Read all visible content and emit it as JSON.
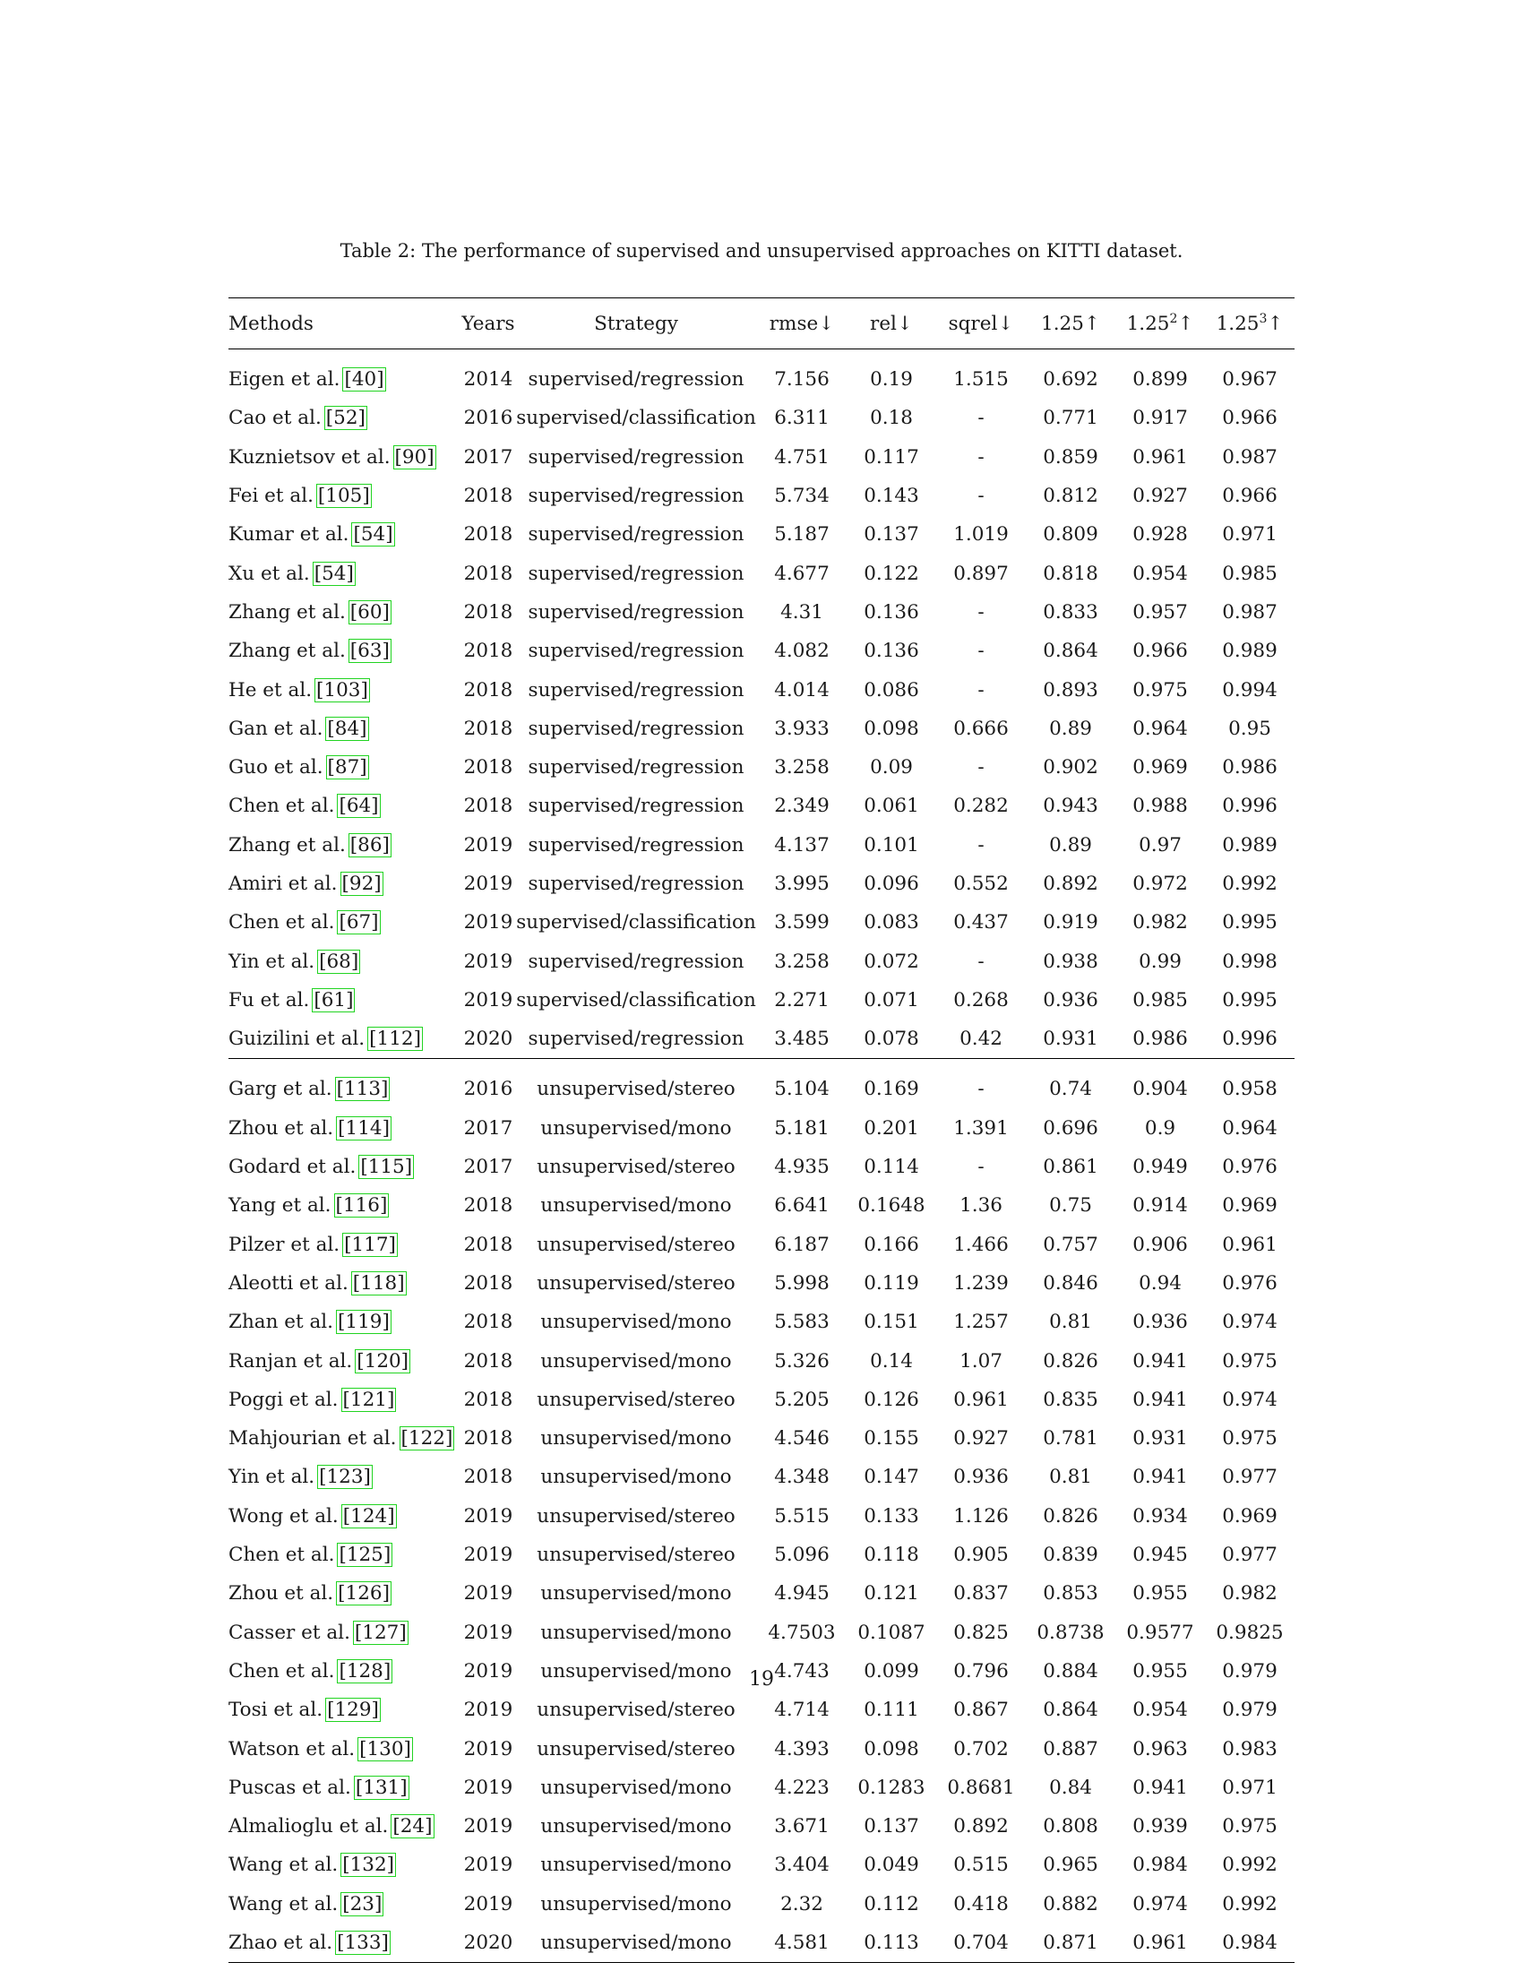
{
  "caption": "Table 2: The performance of supervised and unsupervised approaches on KITTI dataset.",
  "page_number": "19",
  "headers": {
    "methods": "Methods",
    "years": "Years",
    "strategy": "Strategy",
    "rmse": "rmse↓",
    "rel": "rel↓",
    "sqrel": "sqrel↓",
    "d1": "1.25↑",
    "d2_base": "1.25",
    "d2_exp": "2",
    "d2_arrow": "↑",
    "d3_base": "1.25",
    "d3_exp": "3",
    "d3_arrow": "↑"
  },
  "supervised": [
    {
      "name": "Eigen et al.",
      "cite": "[40]",
      "year": "2014",
      "strategy": "supervised/regression",
      "rmse": "7.156",
      "rel": "0.19",
      "sqrel": "1.515",
      "d1": "0.692",
      "d2": "0.899",
      "d3": "0.967"
    },
    {
      "name": "Cao et al.",
      "cite": "[52]",
      "year": "2016",
      "strategy": "supervised/classification",
      "rmse": "6.311",
      "rel": "0.18",
      "sqrel": "-",
      "d1": "0.771",
      "d2": "0.917",
      "d3": "0.966"
    },
    {
      "name": "Kuznietsov et al.",
      "cite": "[90]",
      "year": "2017",
      "strategy": "supervised/regression",
      "rmse": "4.751",
      "rel": "0.117",
      "sqrel": "-",
      "d1": "0.859",
      "d2": "0.961",
      "d3": "0.987"
    },
    {
      "name": "Fei et al.",
      "cite": "[105]",
      "year": "2018",
      "strategy": "supervised/regression",
      "rmse": "5.734",
      "rel": "0.143",
      "sqrel": "-",
      "d1": "0.812",
      "d2": "0.927",
      "d3": "0.966"
    },
    {
      "name": "Kumar et al.",
      "cite": "[54]",
      "year": "2018",
      "strategy": "supervised/regression",
      "rmse": "5.187",
      "rel": "0.137",
      "sqrel": "1.019",
      "d1": "0.809",
      "d2": "0.928",
      "d3": "0.971"
    },
    {
      "name": "Xu et al.",
      "cite": "[54]",
      "year": "2018",
      "strategy": "supervised/regression",
      "rmse": "4.677",
      "rel": "0.122",
      "sqrel": "0.897",
      "d1": "0.818",
      "d2": "0.954",
      "d3": "0.985"
    },
    {
      "name": "Zhang et al.",
      "cite": "[60]",
      "year": "2018",
      "strategy": "supervised/regression",
      "rmse": "4.31",
      "rel": "0.136",
      "sqrel": "-",
      "d1": "0.833",
      "d2": "0.957",
      "d3": "0.987"
    },
    {
      "name": "Zhang et al.",
      "cite": "[63]",
      "year": "2018",
      "strategy": "supervised/regression",
      "rmse": "4.082",
      "rel": "0.136",
      "sqrel": "-",
      "d1": "0.864",
      "d2": "0.966",
      "d3": "0.989"
    },
    {
      "name": "He et al.",
      "cite": "[103]",
      "year": "2018",
      "strategy": "supervised/regression",
      "rmse": "4.014",
      "rel": "0.086",
      "sqrel": "-",
      "d1": "0.893",
      "d2": "0.975",
      "d3": "0.994"
    },
    {
      "name": "Gan et al.",
      "cite": "[84]",
      "year": "2018",
      "strategy": "supervised/regression",
      "rmse": "3.933",
      "rel": "0.098",
      "sqrel": "0.666",
      "d1": "0.89",
      "d2": "0.964",
      "d3": "0.95"
    },
    {
      "name": "Guo et al.",
      "cite": "[87]",
      "year": "2018",
      "strategy": "supervised/regression",
      "rmse": "3.258",
      "rel": "0.09",
      "sqrel": "-",
      "d1": "0.902",
      "d2": "0.969",
      "d3": "0.986"
    },
    {
      "name": "Chen et al.",
      "cite": "[64]",
      "year": "2018",
      "strategy": "supervised/regression",
      "rmse": "2.349",
      "rel": "0.061",
      "sqrel": "0.282",
      "d1": "0.943",
      "d2": "0.988",
      "d3": "0.996"
    },
    {
      "name": "Zhang et al.",
      "cite": "[86]",
      "year": "2019",
      "strategy": "supervised/regression",
      "rmse": "4.137",
      "rel": "0.101",
      "sqrel": "-",
      "d1": "0.89",
      "d2": "0.97",
      "d3": "0.989"
    },
    {
      "name": "Amiri et al.",
      "cite": "[92]",
      "year": "2019",
      "strategy": "supervised/regression",
      "rmse": "3.995",
      "rel": "0.096",
      "sqrel": "0.552",
      "d1": "0.892",
      "d2": "0.972",
      "d3": "0.992"
    },
    {
      "name": "Chen et al.",
      "cite": "[67]",
      "year": "2019",
      "strategy": "supervised/classification",
      "rmse": "3.599",
      "rel": "0.083",
      "sqrel": "0.437",
      "d1": "0.919",
      "d2": "0.982",
      "d3": "0.995"
    },
    {
      "name": "Yin et al.",
      "cite": "[68]",
      "year": "2019",
      "strategy": "supervised/regression",
      "rmse": "3.258",
      "rel": "0.072",
      "sqrel": "-",
      "d1": "0.938",
      "d2": "0.99",
      "d3": "0.998"
    },
    {
      "name": "Fu et al.",
      "cite": "[61]",
      "year": "2019",
      "strategy": "supervised/classification",
      "rmse": "2.271",
      "rel": "0.071",
      "sqrel": "0.268",
      "d1": "0.936",
      "d2": "0.985",
      "d3": "0.995"
    },
    {
      "name": "Guizilini et al.",
      "cite": "[112]",
      "year": "2020",
      "strategy": "supervised/regression",
      "rmse": "3.485",
      "rel": "0.078",
      "sqrel": "0.42",
      "d1": "0.931",
      "d2": "0.986",
      "d3": "0.996"
    }
  ],
  "unsupervised": [
    {
      "name": "Garg et al.",
      "cite": "[113]",
      "year": "2016",
      "strategy": "unsupervised/stereo",
      "rmse": "5.104",
      "rel": "0.169",
      "sqrel": "-",
      "d1": "0.74",
      "d2": "0.904",
      "d3": "0.958"
    },
    {
      "name": "Zhou et al.",
      "cite": "[114]",
      "year": "2017",
      "strategy": "unsupervised/mono",
      "rmse": "5.181",
      "rel": "0.201",
      "sqrel": "1.391",
      "d1": "0.696",
      "d2": "0.9",
      "d3": "0.964"
    },
    {
      "name": "Godard et al.",
      "cite": "[115]",
      "year": "2017",
      "strategy": "unsupervised/stereo",
      "rmse": "4.935",
      "rel": "0.114",
      "sqrel": "-",
      "d1": "0.861",
      "d2": "0.949",
      "d3": "0.976"
    },
    {
      "name": "Yang et al.",
      "cite": "[116]",
      "year": "2018",
      "strategy": "unsupervised/mono",
      "rmse": "6.641",
      "rel": "0.1648",
      "sqrel": "1.36",
      "d1": "0.75",
      "d2": "0.914",
      "d3": "0.969"
    },
    {
      "name": "Pilzer et al.",
      "cite": "[117]",
      "year": "2018",
      "strategy": "unsupervised/stereo",
      "rmse": "6.187",
      "rel": "0.166",
      "sqrel": "1.466",
      "d1": "0.757",
      "d2": "0.906",
      "d3": "0.961"
    },
    {
      "name": "Aleotti et al.",
      "cite": "[118]",
      "year": "2018",
      "strategy": "unsupervised/stereo",
      "rmse": "5.998",
      "rel": "0.119",
      "sqrel": "1.239",
      "d1": "0.846",
      "d2": "0.94",
      "d3": "0.976"
    },
    {
      "name": "Zhan et al.",
      "cite": "[119]",
      "year": "2018",
      "strategy": "unsupervised/mono",
      "rmse": "5.583",
      "rel": "0.151",
      "sqrel": "1.257",
      "d1": "0.81",
      "d2": "0.936",
      "d3": "0.974"
    },
    {
      "name": "Ranjan et al.",
      "cite": "[120]",
      "year": "2018",
      "strategy": "unsupervised/mono",
      "rmse": "5.326",
      "rel": "0.14",
      "sqrel": "1.07",
      "d1": "0.826",
      "d2": "0.941",
      "d3": "0.975"
    },
    {
      "name": "Poggi et al.",
      "cite": "[121]",
      "year": "2018",
      "strategy": "unsupervised/stereo",
      "rmse": "5.205",
      "rel": "0.126",
      "sqrel": "0.961",
      "d1": "0.835",
      "d2": "0.941",
      "d3": "0.974"
    },
    {
      "name": "Mahjourian et al.",
      "cite": "[122]",
      "year": "2018",
      "strategy": "unsupervised/mono",
      "rmse": "4.546",
      "rel": "0.155",
      "sqrel": "0.927",
      "d1": "0.781",
      "d2": "0.931",
      "d3": "0.975"
    },
    {
      "name": "Yin et al.",
      "cite": "[123]",
      "year": "2018",
      "strategy": "unsupervised/mono",
      "rmse": "4.348",
      "rel": "0.147",
      "sqrel": "0.936",
      "d1": "0.81",
      "d2": "0.941",
      "d3": "0.977"
    },
    {
      "name": "Wong et al.",
      "cite": "[124]",
      "year": "2019",
      "strategy": "unsupervised/stereo",
      "rmse": "5.515",
      "rel": "0.133",
      "sqrel": "1.126",
      "d1": "0.826",
      "d2": "0.934",
      "d3": "0.969"
    },
    {
      "name": "Chen et al.",
      "cite": "[125]",
      "year": "2019",
      "strategy": "unsupervised/stereo",
      "rmse": "5.096",
      "rel": "0.118",
      "sqrel": "0.905",
      "d1": "0.839",
      "d2": "0.945",
      "d3": "0.977"
    },
    {
      "name": "Zhou et al.",
      "cite": "[126]",
      "year": "2019",
      "strategy": "unsupervised/mono",
      "rmse": "4.945",
      "rel": "0.121",
      "sqrel": "0.837",
      "d1": "0.853",
      "d2": "0.955",
      "d3": "0.982"
    },
    {
      "name": "Casser et al.",
      "cite": "[127]",
      "year": "2019",
      "strategy": "unsupervised/mono",
      "rmse": "4.7503",
      "rel": "0.1087",
      "sqrel": "0.825",
      "d1": "0.8738",
      "d2": "0.9577",
      "d3": "0.9825"
    },
    {
      "name": "Chen et al.",
      "cite": "[128]",
      "year": "2019",
      "strategy": "unsupervised/mono",
      "rmse": "4.743",
      "rel": "0.099",
      "sqrel": "0.796",
      "d1": "0.884",
      "d2": "0.955",
      "d3": "0.979"
    },
    {
      "name": "Tosi et al.",
      "cite": "[129]",
      "year": "2019",
      "strategy": "unsupervised/stereo",
      "rmse": "4.714",
      "rel": "0.111",
      "sqrel": "0.867",
      "d1": "0.864",
      "d2": "0.954",
      "d3": "0.979"
    },
    {
      "name": "Watson et al.",
      "cite": "[130]",
      "year": "2019",
      "strategy": "unsupervised/stereo",
      "rmse": "4.393",
      "rel": "0.098",
      "sqrel": "0.702",
      "d1": "0.887",
      "d2": "0.963",
      "d3": "0.983"
    },
    {
      "name": "Puscas et al.",
      "cite": "[131]",
      "year": "2019",
      "strategy": "unsupervised/mono",
      "rmse": "4.223",
      "rel": "0.1283",
      "sqrel": "0.8681",
      "d1": "0.84",
      "d2": "0.941",
      "d3": "0.971"
    },
    {
      "name": "Almalioglu et al.",
      "cite": "[24]",
      "year": "2019",
      "strategy": "unsupervised/mono",
      "rmse": "3.671",
      "rel": "0.137",
      "sqrel": "0.892",
      "d1": "0.808",
      "d2": "0.939",
      "d3": "0.975"
    },
    {
      "name": "Wang et al.",
      "cite": "[132]",
      "year": "2019",
      "strategy": "unsupervised/mono",
      "rmse": "3.404",
      "rel": "0.049",
      "sqrel": "0.515",
      "d1": "0.965",
      "d2": "0.984",
      "d3": "0.992"
    },
    {
      "name": "Wang et al.",
      "cite": "[23]",
      "year": "2019",
      "strategy": "unsupervised/mono",
      "rmse": "2.32",
      "rel": "0.112",
      "sqrel": "0.418",
      "d1": "0.882",
      "d2": "0.974",
      "d3": "0.992"
    },
    {
      "name": "Zhao et al.",
      "cite": "[133]",
      "year": "2020",
      "strategy": "unsupervised/mono",
      "rmse": "4.581",
      "rel": "0.113",
      "sqrel": "0.704",
      "d1": "0.871",
      "d2": "0.961",
      "d3": "0.984"
    }
  ]
}
